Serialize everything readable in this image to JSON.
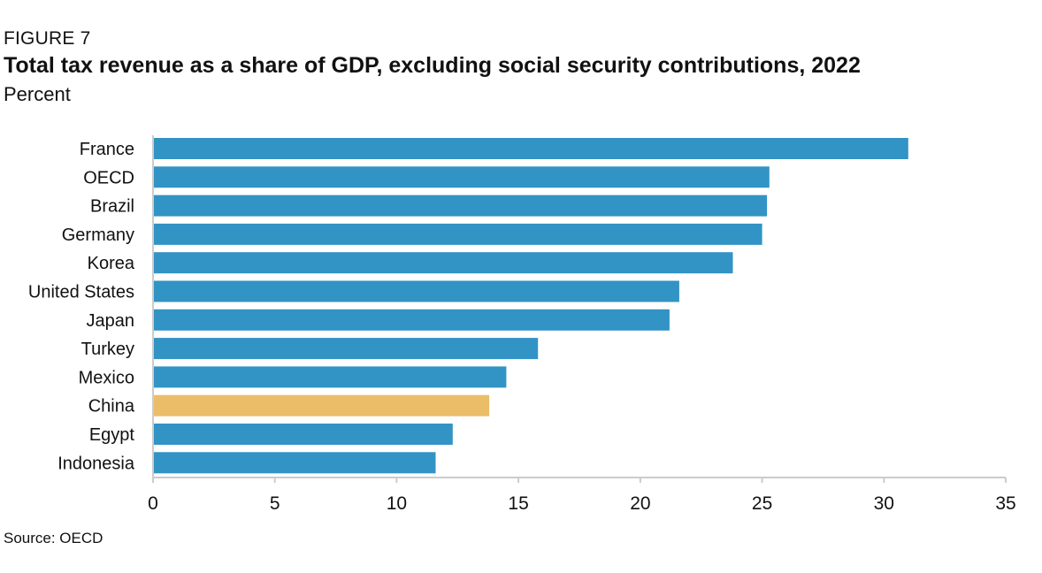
{
  "figure_label": "FIGURE 7",
  "source": "Source: OECD",
  "chart_data": {
    "type": "bar",
    "orientation": "horizontal",
    "title": "Total tax revenue as a share of GDP, excluding social security contributions, 2022",
    "subtitle": "Percent",
    "categories": [
      "France",
      "OECD",
      "Brazil",
      "Germany",
      "Korea",
      "United States",
      "Japan",
      "Turkey",
      "Mexico",
      "China",
      "Egypt",
      "Indonesia"
    ],
    "values": [
      31.0,
      25.3,
      25.2,
      25.0,
      23.8,
      21.6,
      21.2,
      15.8,
      14.5,
      13.8,
      12.3,
      11.6
    ],
    "xlim": [
      0,
      35
    ],
    "xticks": [
      0,
      5,
      10,
      15,
      20,
      25,
      30,
      35
    ],
    "grid": false,
    "legend": "none",
    "colors": {
      "default": "#3293c5",
      "highlight": "#ebbd68",
      "highlight_category": "China"
    }
  }
}
